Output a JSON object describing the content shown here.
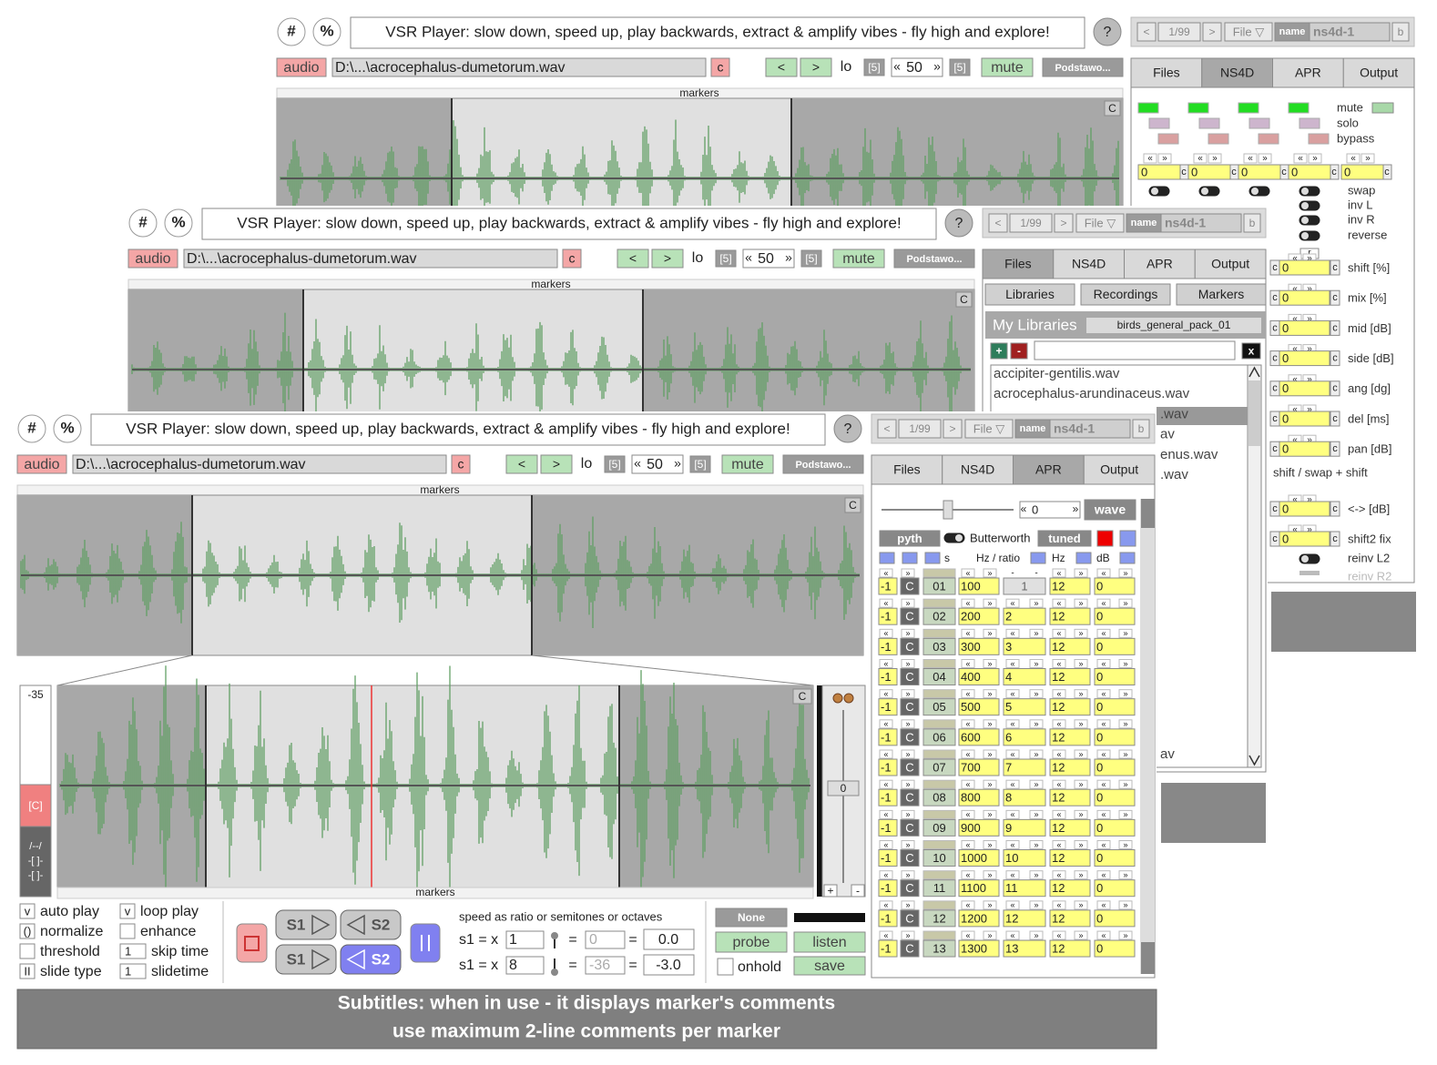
{
  "windows": [
    {
      "hash": "#",
      "percent": "%",
      "title": "VSR Player:  slow down, speed up, play backwards, extract & amplify vibes  -  fly high and explore!",
      "help": "?",
      "audio": "audio",
      "file": "D:\\...\\acrocephalus-dumetorum.wav",
      "clear": "c",
      "prev": "<",
      "next": ">",
      "lo": "lo",
      "step_left": "[5]",
      "dec": "«",
      "zoom": "50",
      "inc": "»",
      "step_right": "[5]",
      "mute": "mute",
      "preset": "Podstawo...",
      "markers": "markers",
      "wave_clear": "C",
      "panel": {
        "nav_prev": "<",
        "page": "1/99",
        "nav_next": ">",
        "file_menu": "File ▽",
        "name_label": "name",
        "name": "ns4d-1",
        "b": "b",
        "tabs": [
          "Files",
          "NS4D",
          "APR",
          "Output"
        ]
      }
    },
    {
      "hash": "#",
      "percent": "%",
      "title": "VSR Player:  slow down, speed up, play backwards, extract & amplify vibes  -  fly high and explore!",
      "help": "?",
      "audio": "audio",
      "file": "D:\\...\\acrocephalus-dumetorum.wav",
      "clear": "c",
      "prev": "<",
      "next": ">",
      "lo": "lo",
      "step_left": "[5]",
      "dec": "«",
      "zoom": "50",
      "inc": "»",
      "step_right": "[5]",
      "mute": "mute",
      "preset": "Podstawo...",
      "markers": "markers",
      "wave_clear": "C",
      "panel": {
        "nav_prev": "<",
        "page": "1/99",
        "nav_next": ">",
        "file_menu": "File ▽",
        "name_label": "name",
        "name": "ns4d-1",
        "b": "b",
        "tabs": [
          "Files",
          "NS4D",
          "APR",
          "Output"
        ]
      }
    },
    {
      "hash": "#",
      "percent": "%",
      "title": "VSR Player:  slow down, speed up, play backwards, extract & amplify vibes  -  fly high and explore!",
      "help": "?",
      "audio": "audio",
      "file": "D:\\...\\acrocephalus-dumetorum.wav",
      "clear": "c",
      "prev": "<",
      "next": ">",
      "lo": "lo",
      "step_left": "[5]",
      "dec": "«",
      "zoom": "50",
      "inc": "»",
      "step_right": "[5]",
      "mute": "mute",
      "preset": "Podstawo...",
      "markers": "markers",
      "wave_clear": "C",
      "panel": {
        "nav_prev": "<",
        "page": "1/99",
        "nav_next": ">",
        "file_menu": "File ▽",
        "name_label": "name",
        "name": "ns4d-1",
        "b": "b",
        "tabs": [
          "Files",
          "NS4D",
          "APR",
          "Output"
        ]
      }
    }
  ],
  "ns4d": {
    "arrow_left": "«",
    "arrow_right": "»",
    "clear": "c",
    "switch_labels": [
      "mute",
      "solo",
      "bypass"
    ],
    "top_values": [
      "0",
      "0",
      "0",
      "0",
      "0"
    ],
    "toggle_labels": [
      "swap",
      "inv L",
      "inv R",
      "reverse"
    ],
    "r": "r",
    "param_labels": [
      "shift [%]",
      "mix [%]",
      "mid [dB]",
      "side [dB]",
      "ang [dg]",
      "del [ms]",
      "pan [dB]"
    ],
    "param_values": [
      "0",
      "0",
      "0",
      "0",
      "0",
      "0",
      "0"
    ],
    "section": "shift / swap + shift",
    "param2_labels": [
      "<-> [dB]",
      "shift2 fix"
    ],
    "param2_values": [
      "0",
      "0"
    ],
    "toggle2_labels": [
      "reinv L2",
      "reinv R2"
    ]
  },
  "files": {
    "subtabs": [
      "Libraries",
      "Recordings",
      "Markers"
    ],
    "heading": "My Libraries",
    "library": "birds_general_pack_01",
    "add": "+",
    "remove": "-",
    "close": "x",
    "items": [
      "accipiter-gentilis.wav",
      "acrocephalus-arundinaceus.wav",
      ".wav",
      "av",
      "enus.wav",
      ".wav"
    ],
    "last_item": "av"
  },
  "apr": {
    "dec": "«",
    "value": "0",
    "inc": "»",
    "wave": "wave",
    "pyth": "pyth",
    "filter": "Butterworth",
    "tuned": "tuned",
    "col_labels": [
      "s",
      "Hz / ratio",
      "Hz",
      "dB"
    ],
    "dash": "-",
    "rows": [
      [
        "-1",
        "C",
        "01",
        "100",
        "1",
        "12",
        "0"
      ],
      [
        "-1",
        "C",
        "02",
        "200",
        "2",
        "12",
        "0"
      ],
      [
        "-1",
        "C",
        "03",
        "300",
        "3",
        "12",
        "0"
      ],
      [
        "-1",
        "C",
        "04",
        "400",
        "4",
        "12",
        "0"
      ],
      [
        "-1",
        "C",
        "05",
        "500",
        "5",
        "12",
        "0"
      ],
      [
        "-1",
        "C",
        "06",
        "600",
        "6",
        "12",
        "0"
      ],
      [
        "-1",
        "C",
        "07",
        "700",
        "7",
        "12",
        "0"
      ],
      [
        "-1",
        "C",
        "08",
        "800",
        "8",
        "12",
        "0"
      ],
      [
        "-1",
        "C",
        "09",
        "900",
        "9",
        "12",
        "0"
      ],
      [
        "-1",
        "C",
        "10",
        "1000",
        "10",
        "12",
        "0"
      ],
      [
        "-1",
        "C",
        "11",
        "1100",
        "11",
        "12",
        "0"
      ],
      [
        "-1",
        "C",
        "12",
        "1200",
        "12",
        "12",
        "0"
      ],
      [
        "-1",
        "C",
        "13",
        "1300",
        "13",
        "12",
        "0"
      ]
    ]
  },
  "zoom": {
    "level": "-35",
    "clip": "[C]",
    "modes": [
      "/--/",
      "-[ ]-",
      "-[ ]-"
    ],
    "markers": "markers",
    "clear": "C",
    "gain": "0",
    "plus": "+",
    "minus": "-"
  },
  "options": [
    {
      "box": "v",
      "label": "auto play"
    },
    {
      "box": "()",
      "label": "normalize"
    },
    {
      "label": "threshold"
    },
    {
      "box": "II",
      "label": "slide type"
    },
    {
      "box": "v",
      "label": "loop play"
    },
    {
      "label": "enhance"
    },
    {
      "box": "1",
      "label": "skip time"
    },
    {
      "box": "1",
      "label": "slidetime"
    }
  ],
  "transport": {
    "s1": "S1",
    "s2": "S2"
  },
  "speed": {
    "caption": "speed  as  ratio  or  semitones  or  octaves",
    "rows": [
      {
        "label": "s1 = x",
        "ratio": "1",
        "eq": "=",
        "semitones": "0",
        "octaves": "0.0"
      },
      {
        "label": "s1 = x",
        "ratio": "8",
        "eq": "=",
        "semitones": "-36",
        "octaves": "-3.0"
      }
    ]
  },
  "probe": {
    "none": "None",
    "probe": "probe",
    "listen": "listen",
    "onhold": "onhold",
    "save": "save"
  },
  "subtitles": [
    "Subtitles: when in use - it displays marker's comments",
    "use maximum 2-line comments per marker"
  ]
}
